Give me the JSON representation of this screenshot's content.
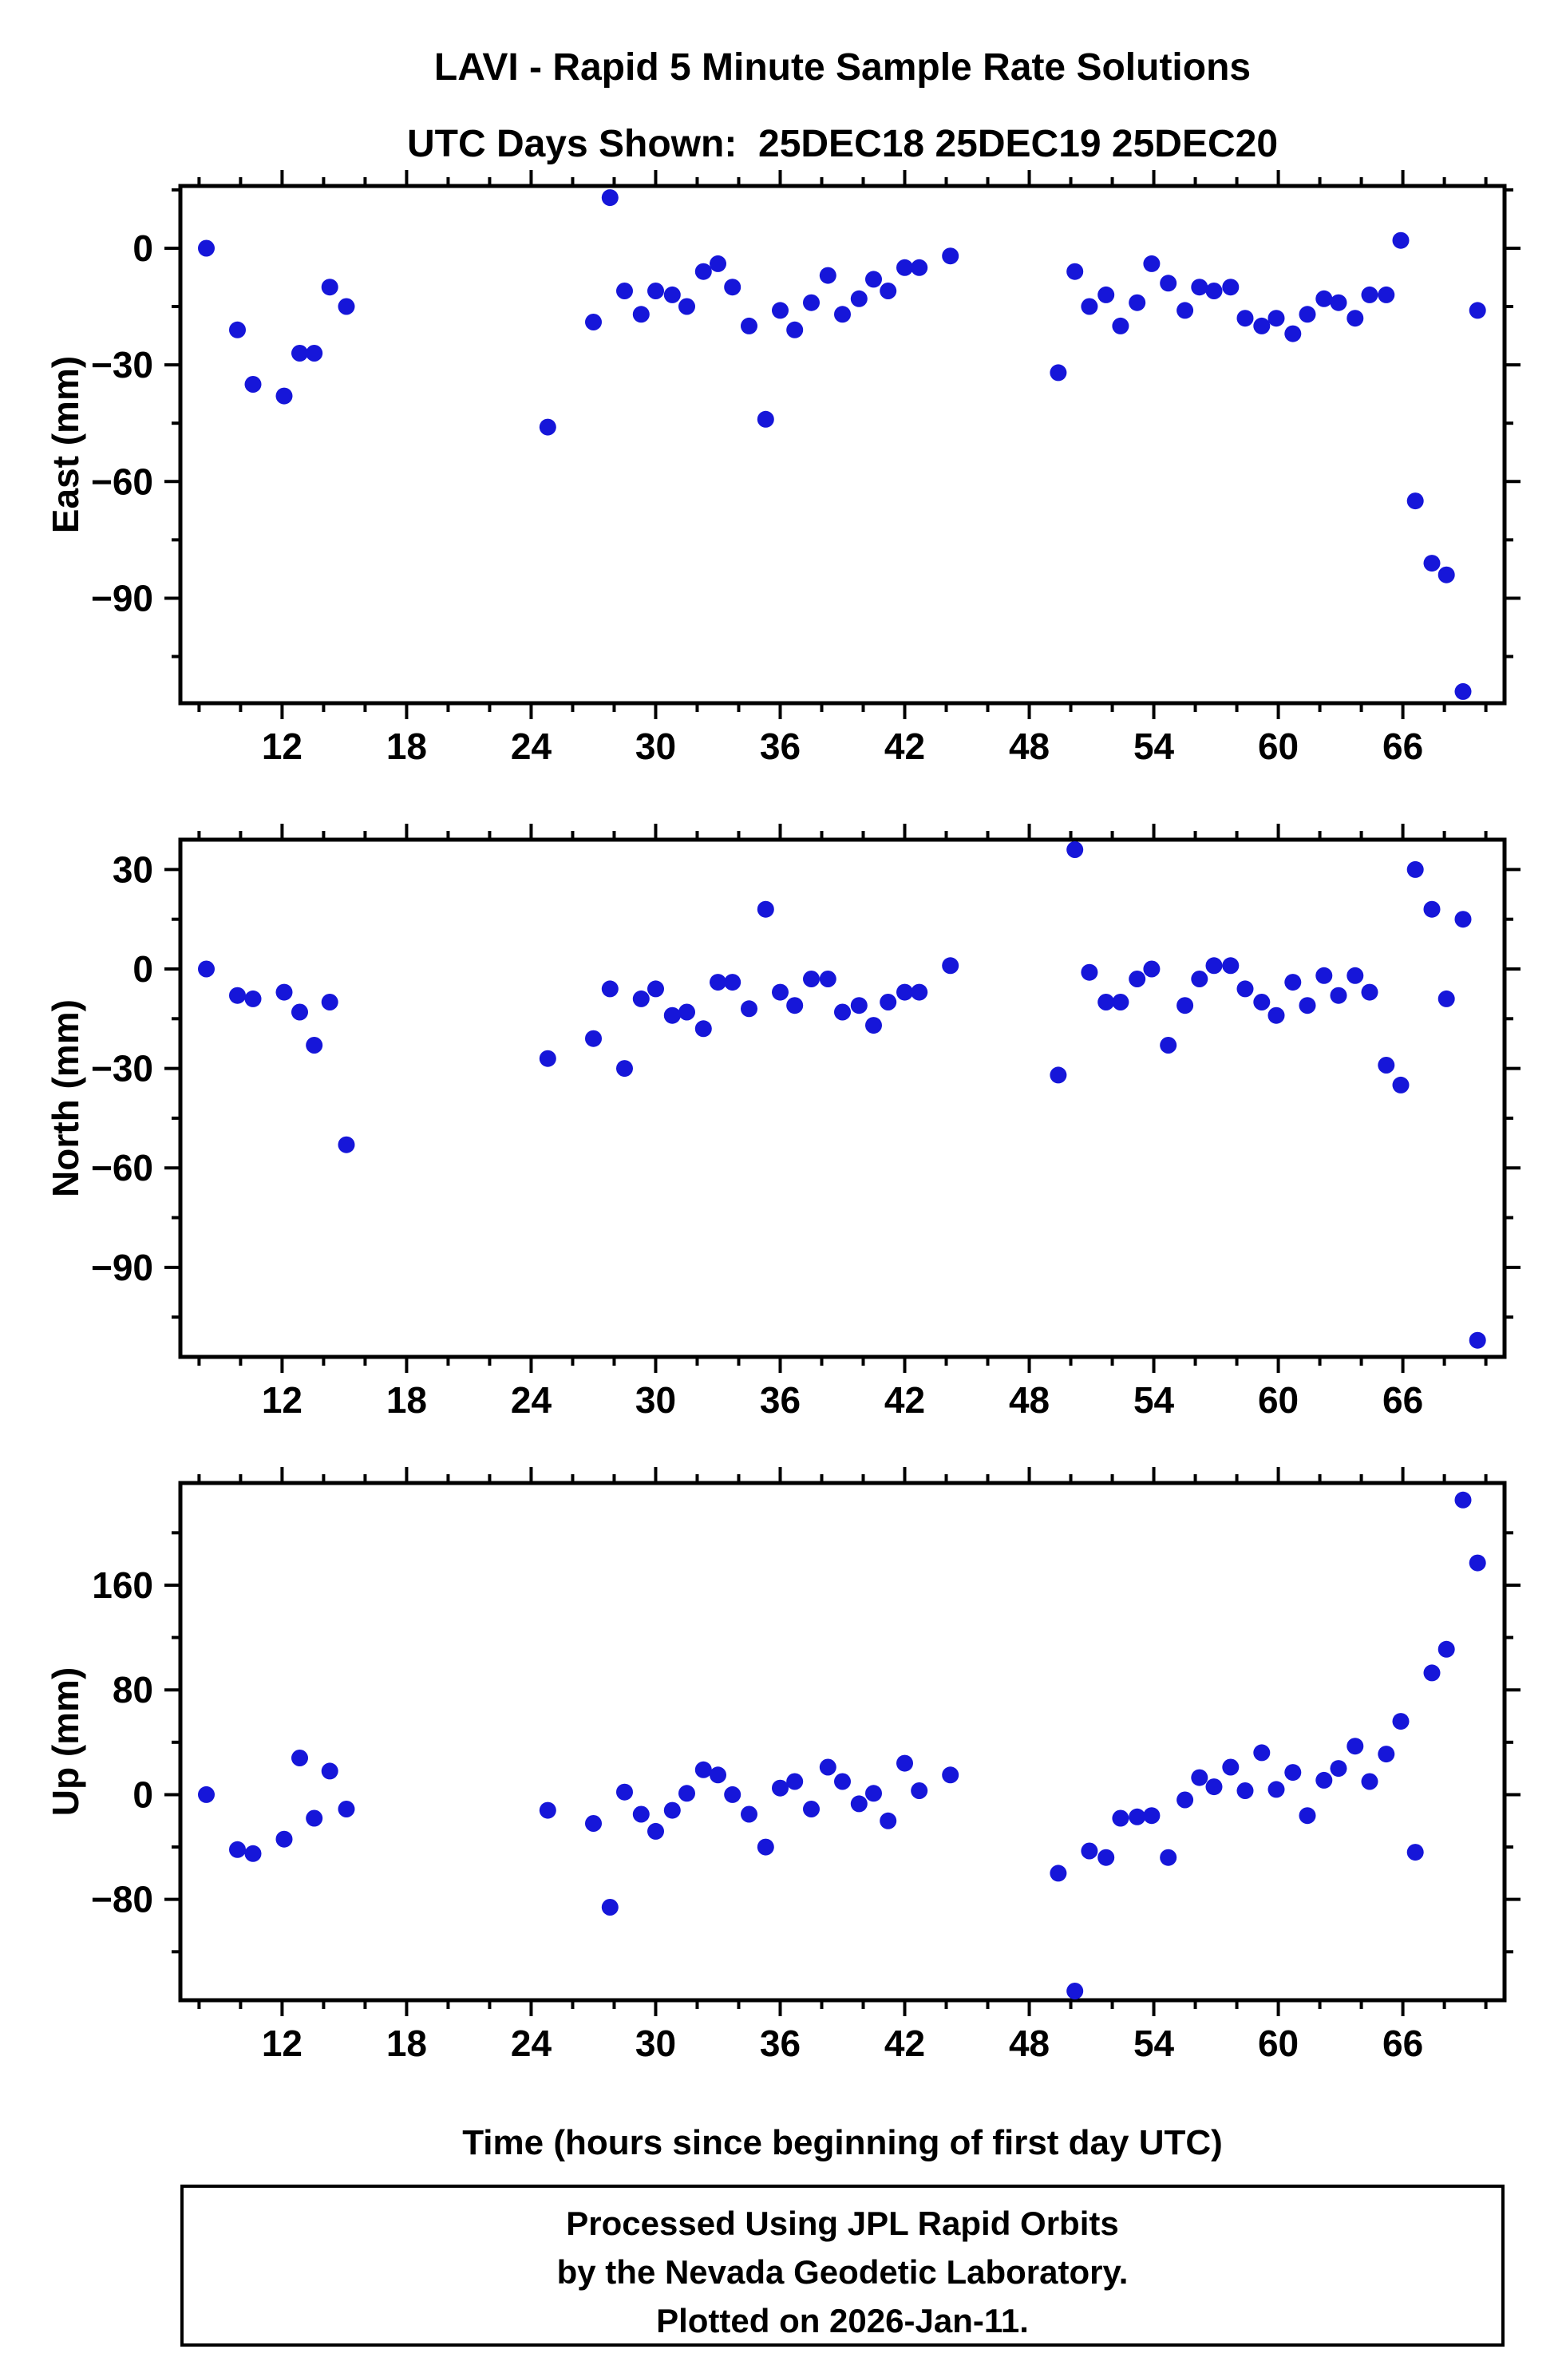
{
  "title": {
    "line1": "LAVI - Rapid 5 Minute Sample Rate Solutions",
    "line2": "UTC Days Shown:  25DEC18 25DEC19 25DEC20"
  },
  "x_axis": {
    "label": "Time (hours since beginning of first day UTC)",
    "range": [
      7.1,
      70.9
    ],
    "ticks": [
      12,
      18,
      24,
      30,
      36,
      42,
      48,
      54,
      60,
      66
    ],
    "minor_step": 2
  },
  "style": {
    "point_color": "#1616d9",
    "frame_color": "#000000"
  },
  "footer": {
    "line1": "Processed Using JPL Rapid Orbits",
    "line2": "by the Nevada Geodetic Laboratory.",
    "line3": "Plotted on 2026-Jan-11."
  },
  "chart_data": [
    {
      "type": "scatter",
      "name": "east",
      "ylabel": "East (mm)",
      "ylim": [
        -117,
        16
      ],
      "yticks": [
        -90,
        -60,
        -30,
        0
      ],
      "y_minor_step": 15,
      "x": [
        8.35,
        9.85,
        10.6,
        12.1,
        12.85,
        13.55,
        14.3,
        15.1,
        24.8,
        27.0,
        27.8,
        28.5,
        29.3,
        30.0,
        30.8,
        31.5,
        32.3,
        33.0,
        33.7,
        34.5,
        35.3,
        36.0,
        36.7,
        37.5,
        38.3,
        39.0,
        39.8,
        40.5,
        41.2,
        42.0,
        42.7,
        44.2,
        49.4,
        50.2,
        50.9,
        51.7,
        52.4,
        53.2,
        53.9,
        54.7,
        55.5,
        56.2,
        56.9,
        57.7,
        58.4,
        59.2,
        59.9,
        60.7,
        61.4,
        62.2,
        62.9,
        63.7,
        64.4,
        65.2,
        65.9,
        66.6,
        67.4,
        68.1,
        68.9,
        69.6
      ],
      "values": [
        0,
        -21,
        -35,
        -38,
        -27,
        -27,
        -10,
        -15,
        -46,
        -19,
        13,
        -11,
        -17,
        -11,
        -12,
        -15,
        -6,
        -4,
        -10,
        -20,
        -44,
        -16,
        -21,
        -14,
        -7,
        -17,
        -13,
        -8,
        -11,
        -5,
        -5,
        -2,
        -32,
        -6,
        -15,
        -12,
        -20,
        -14,
        -4,
        -9,
        -16,
        -10,
        -11,
        -10,
        -18,
        -20,
        -18,
        -22,
        -17,
        -13,
        -14,
        -18,
        -12,
        -12,
        2,
        -65,
        -81,
        -84,
        -114,
        -16
      ]
    },
    {
      "type": "scatter",
      "name": "north",
      "ylabel": "North (mm)",
      "ylim": [
        -117,
        39
      ],
      "yticks": [
        -90,
        -60,
        -30,
        0,
        30
      ],
      "y_minor_step": 15,
      "x": [
        8.35,
        9.85,
        10.6,
        12.1,
        12.85,
        13.55,
        14.3,
        15.1,
        24.8,
        27.0,
        27.8,
        28.5,
        29.3,
        30.0,
        30.8,
        31.5,
        32.3,
        33.0,
        33.7,
        34.5,
        35.3,
        36.0,
        36.7,
        37.5,
        38.3,
        39.0,
        39.8,
        40.5,
        41.2,
        42.0,
        42.7,
        44.2,
        49.4,
        50.2,
        50.9,
        51.7,
        52.4,
        53.2,
        53.9,
        54.7,
        55.5,
        56.2,
        56.9,
        57.7,
        58.4,
        59.2,
        59.9,
        60.7,
        61.4,
        62.2,
        62.9,
        63.7,
        64.4,
        65.2,
        65.9,
        66.6,
        67.4,
        68.1,
        68.9,
        69.6
      ],
      "values": [
        0,
        -8,
        -9,
        -7,
        -13,
        -23,
        -10,
        -53,
        -27,
        -21,
        -6,
        -30,
        -9,
        -6,
        -14,
        -13,
        -18,
        -4,
        -4,
        -12,
        18,
        -7,
        -11,
        -3,
        -3,
        -13,
        -11,
        -17,
        -10,
        -7,
        -7,
        1,
        -32,
        36,
        -1,
        -10,
        -10,
        -3,
        0,
        -23,
        -11,
        -3,
        1,
        1,
        -6,
        -10,
        -14,
        -4,
        -11,
        -2,
        -8,
        -2,
        -7,
        -29,
        -35,
        30,
        18,
        -9,
        15,
        -112
      ]
    },
    {
      "type": "scatter",
      "name": "up",
      "ylabel": "Up (mm)",
      "ylim": [
        -157,
        238
      ],
      "yticks": [
        -80,
        0,
        80,
        160
      ],
      "y_minor_step": 40,
      "x": [
        8.35,
        9.85,
        10.6,
        12.1,
        12.85,
        13.55,
        14.3,
        15.1,
        24.8,
        27.0,
        27.8,
        28.5,
        29.3,
        30.0,
        30.8,
        31.5,
        32.3,
        33.0,
        33.7,
        34.5,
        35.3,
        36.0,
        36.7,
        37.5,
        38.3,
        39.0,
        39.8,
        40.5,
        41.2,
        42.0,
        42.7,
        44.2,
        49.4,
        50.2,
        50.9,
        51.7,
        52.4,
        53.2,
        53.9,
        54.7,
        55.5,
        56.2,
        56.9,
        57.7,
        58.4,
        59.2,
        59.9,
        60.7,
        61.4,
        62.2,
        62.9,
        63.7,
        64.4,
        65.2,
        65.9,
        66.6,
        67.4,
        68.1,
        68.9,
        69.6
      ],
      "values": [
        0,
        -42,
        -45,
        -34,
        28,
        -18,
        18,
        -11,
        -12,
        -22,
        -86,
        2,
        -15,
        -28,
        -12,
        1,
        19,
        15,
        0,
        -15,
        -40,
        5,
        10,
        -11,
        21,
        10,
        -7,
        1,
        -20,
        24,
        3,
        15,
        -60,
        -150,
        -43,
        -48,
        -18,
        -17,
        -16,
        -48,
        -4,
        13,
        6,
        21,
        3,
        32,
        4,
        17,
        -16,
        11,
        20,
        37,
        10,
        31,
        56,
        -44,
        93,
        111,
        225,
        177
      ]
    }
  ]
}
